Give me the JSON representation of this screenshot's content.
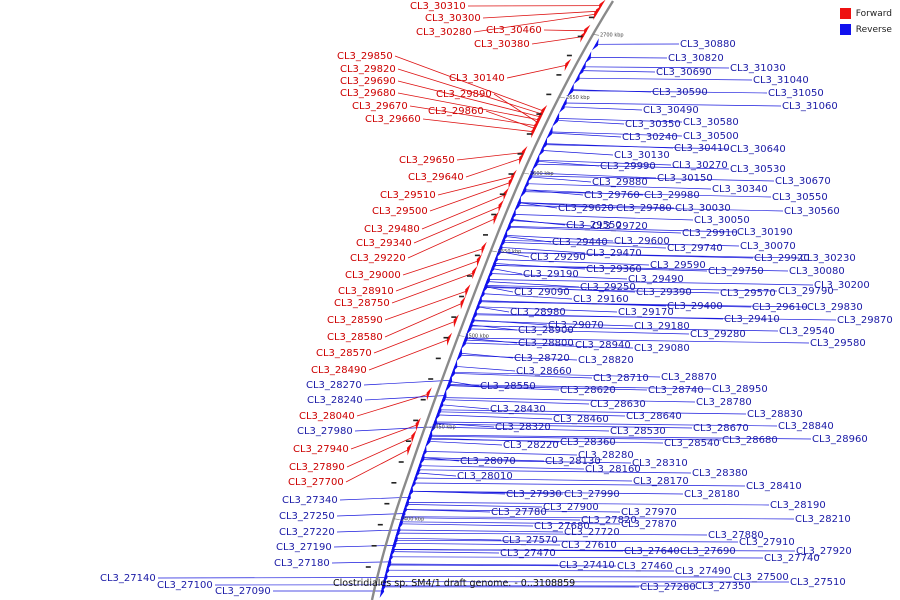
{
  "legend": [
    {
      "label": "Forward",
      "color": "#ee1111"
    },
    {
      "label": "Reverse",
      "color": "#1111ee"
    }
  ],
  "caption": "Clostridiales sp. SM4/1 draft genome. - 0..3108859",
  "kbp_ticks": [
    "2700 kbp",
    "2650 kbp",
    "2600 kbp",
    "2550 kbp",
    "2500 kbp",
    "2450 kbp",
    "2400 kbp"
  ],
  "forward_genes": [
    "CL3_30310",
    "CL3_30300",
    "CL3_30280",
    "CL3_30460",
    "CL3_30380",
    "CL3_30140",
    "CL3_29850",
    "CL3_29820",
    "CL3_29690",
    "CL3_29680",
    "CL3_29890",
    "CL3_29670",
    "CL3_29860",
    "CL3_29660",
    "CL3_29650",
    "CL3_29640",
    "CL3_29510",
    "CL3_29500",
    "CL3_29480",
    "CL3_29340",
    "CL3_29220",
    "CL3_29000",
    "CL3_28910",
    "CL3_28750",
    "CL3_28590",
    "CL3_28580",
    "CL3_28570",
    "CL3_28490",
    "CL3_28040",
    "CL3_27940",
    "CL3_27890",
    "CL3_27700"
  ],
  "reverse_genes": [
    "CL3_30880",
    "CL3_30820",
    "CL3_31030",
    "CL3_30690",
    "CL3_31040",
    "CL3_31050",
    "CL3_31060",
    "CL3_30590",
    "CL3_30490",
    "CL3_30580",
    "CL3_30350",
    "CL3_30500",
    "CL3_30240",
    "CL3_30640",
    "CL3_30410",
    "CL3_30130",
    "CL3_30270",
    "CL3_30530",
    "CL3_29990",
    "CL3_30150",
    "CL3_30670",
    "CL3_29880",
    "CL3_30340",
    "CL3_29760",
    "CL3_29980",
    "CL3_30550",
    "CL3_29620",
    "CL3_29780",
    "CL3_30030",
    "CL3_30560",
    "CL3_30050",
    "CL3_29720",
    "CL3_29910",
    "CL3_30190",
    "CL3_29550",
    "CL3_29440",
    "CL3_29600",
    "CL3_30070",
    "CL3_29740",
    "CL3_29470",
    "CL3_29920",
    "CL3_30230",
    "CL3_29290",
    "CL3_29590",
    "CL3_29750",
    "CL3_30080",
    "CL3_29360",
    "CL3_29190",
    "CL3_29490",
    "CL3_30200",
    "CL3_29250",
    "CL3_29390",
    "CL3_29570",
    "CL3_29790",
    "CL3_29090",
    "CL3_29160",
    "CL3_29400",
    "CL3_29610",
    "CL3_29830",
    "CL3_28980",
    "CL3_29170",
    "CL3_29410",
    "CL3_29870",
    "CL3_29070",
    "CL3_29180",
    "CL3_28900",
    "CL3_29540",
    "CL3_29280",
    "CL3_28800",
    "CL3_28940",
    "CL3_29080",
    "CL3_29580",
    "CL3_28720",
    "CL3_28820",
    "CL3_28660",
    "CL3_28710",
    "CL3_28870",
    "CL3_28550",
    "CL3_28620",
    "CL3_28740",
    "CL3_28950",
    "CL3_28780",
    "CL3_28430",
    "CL3_28630",
    "CL3_28460",
    "CL3_28830",
    "CL3_28640",
    "CL3_28320",
    "CL3_28530",
    "CL3_28670",
    "CL3_28840",
    "CL3_28360",
    "CL3_28680",
    "CL3_28220",
    "CL3_28540",
    "CL3_28960",
    "CL3_28280",
    "CL3_28070",
    "CL3_28130",
    "CL3_28310",
    "CL3_28160",
    "CL3_28010",
    "CL3_28380",
    "CL3_28170",
    "CL3_28410",
    "CL3_28180",
    "CL3_27930",
    "CL3_27990",
    "CL3_28190",
    "CL3_27780",
    "CL3_27900",
    "CL3_27970",
    "CL3_28210",
    "CL3_27820",
    "CL3_27680",
    "CL3_27870",
    "CL3_27720",
    "CL3_27880",
    "CL3_27570",
    "CL3_27910",
    "CL3_27610",
    "CL3_27470",
    "CL3_27640",
    "CL3_27690",
    "CL3_27920",
    "CL3_27740",
    "CL3_27410",
    "CL3_27460",
    "CL3_27490",
    "CL3_27500",
    "CL3_27510",
    "CL3_27280",
    "CL3_27350",
    "CL3_27340",
    "CL3_27250",
    "CL3_27220",
    "CL3_27190",
    "CL3_27180",
    "CL3_28270",
    "CL3_28240",
    "CL3_27980",
    "CL3_27140",
    "CL3_27100",
    "CL3_27090"
  ]
}
